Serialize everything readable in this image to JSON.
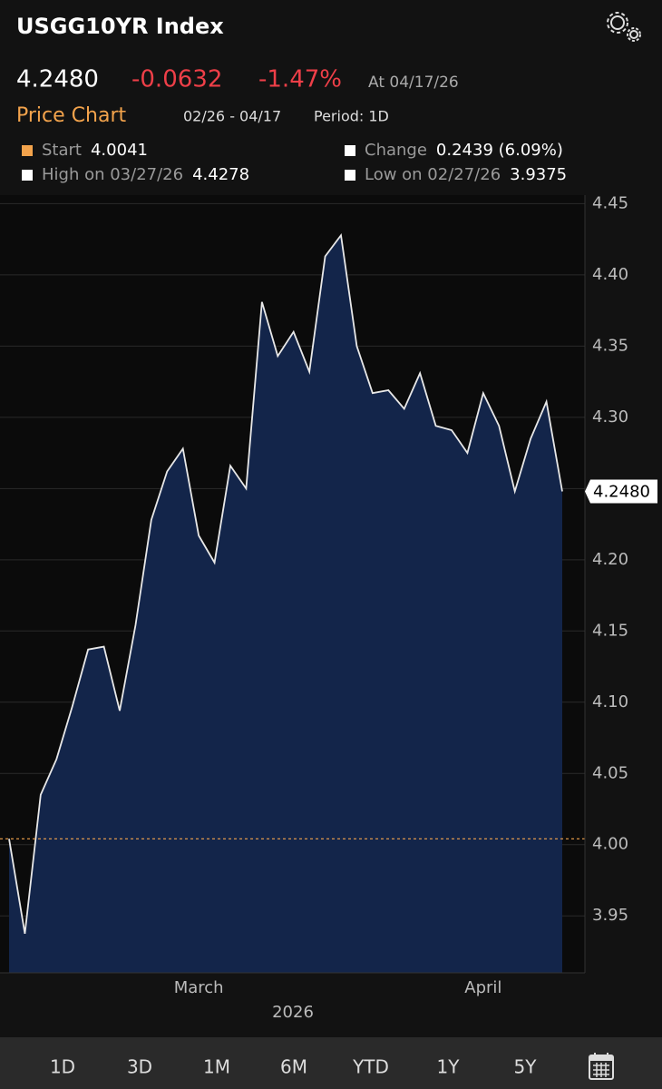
{
  "header": {
    "title": "USGG10YR Index"
  },
  "quote": {
    "last": "4.2480",
    "change": "-0.0632",
    "change_pct": "-1.47%",
    "as_of": "At 04/17/26"
  },
  "chart_header": {
    "label": "Price Chart",
    "range": "02/26 - 04/17",
    "period": "Period: 1D"
  },
  "stats": [
    {
      "label": "Start",
      "value": 4.0041
    },
    {
      "label": "Change",
      "value": "0.2439 (6.09%)"
    },
    {
      "label": "High on 03/27/26",
      "value": 4.4278
    },
    {
      "label": "Low on 02/27/26",
      "value": 3.9375
    }
  ],
  "chart_data": {
    "type": "area",
    "categories": [
      null,
      null,
      null,
      null,
      null,
      null,
      null,
      null,
      null,
      null,
      null,
      null,
      "March",
      null,
      null,
      null,
      null,
      null,
      null,
      null,
      null,
      null,
      null,
      null,
      null,
      null,
      null,
      null,
      null,
      null,
      "April",
      null,
      null,
      null,
      null,
      null
    ],
    "values": [
      4.0041,
      3.9375,
      4.035,
      4.06,
      4.097,
      4.137,
      4.139,
      4.094,
      4.154,
      4.228,
      4.262,
      4.278,
      4.217,
      4.198,
      4.266,
      4.25,
      4.381,
      4.343,
      4.36,
      4.332,
      4.413,
      4.4278,
      4.35,
      4.317,
      4.319,
      4.306,
      4.331,
      4.294,
      4.291,
      4.275,
      4.317,
      4.294,
      4.248,
      4.285,
      4.311,
      4.248
    ],
    "last_label": "4.2480",
    "xlabel": "2026",
    "color": "#13254a",
    "line_color": "#e8e8e8",
    "ylim": [
      3.91,
      4.456
    ],
    "yticks": [
      3.95,
      {
        "value": 4,
        "label": "4.00"
      },
      4.05,
      {
        "value": 4.1,
        "label": "4.10"
      },
      4.15,
      {
        "value": 4.2,
        "label": "4.20"
      },
      4.25,
      {
        "value": 4.3,
        "label": "4.30"
      },
      4.35,
      {
        "value": 4.4,
        "label": "4.40"
      },
      4.45
    ],
    "grid": true
  },
  "tabs": [
    "1D",
    "3D",
    "1M",
    "6M",
    "YTD",
    "1Y",
    "5Y"
  ]
}
